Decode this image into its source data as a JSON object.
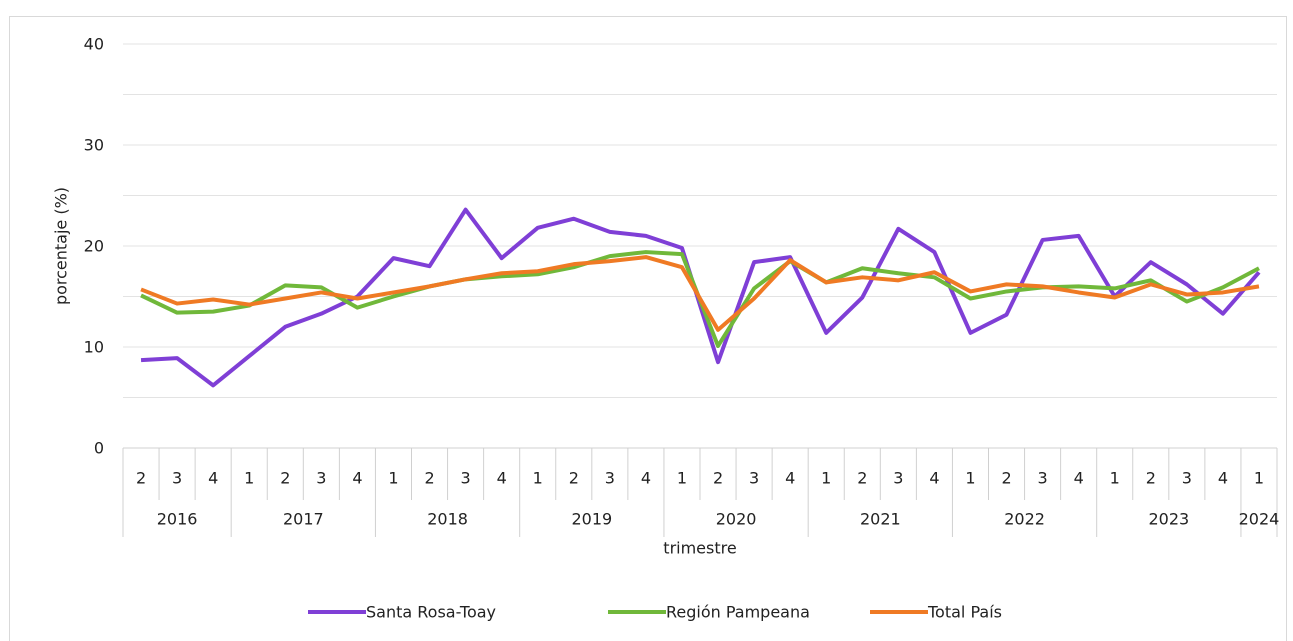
{
  "chart_data": {
    "type": "line",
    "y_label": "porcentaje (%)",
    "x_label": "trimestre",
    "categories": [
      {
        "quarter": "2",
        "year": "2016"
      },
      {
        "quarter": "3",
        "year": "2016"
      },
      {
        "quarter": "4",
        "year": "2016"
      },
      {
        "quarter": "1",
        "year": "2017"
      },
      {
        "quarter": "2",
        "year": "2017"
      },
      {
        "quarter": "3",
        "year": "2017"
      },
      {
        "quarter": "4",
        "year": "2017"
      },
      {
        "quarter": "1",
        "year": "2018"
      },
      {
        "quarter": "2",
        "year": "2018"
      },
      {
        "quarter": "3",
        "year": "2018"
      },
      {
        "quarter": "4",
        "year": "2018"
      },
      {
        "quarter": "1",
        "year": "2019"
      },
      {
        "quarter": "2",
        "year": "2019"
      },
      {
        "quarter": "3",
        "year": "2019"
      },
      {
        "quarter": "4",
        "year": "2019"
      },
      {
        "quarter": "1",
        "year": "2020"
      },
      {
        "quarter": "2",
        "year": "2020"
      },
      {
        "quarter": "3",
        "year": "2020"
      },
      {
        "quarter": "4",
        "year": "2020"
      },
      {
        "quarter": "1",
        "year": "2021"
      },
      {
        "quarter": "2",
        "year": "2021"
      },
      {
        "quarter": "3",
        "year": "2021"
      },
      {
        "quarter": "4",
        "year": "2021"
      },
      {
        "quarter": "1",
        "year": "2022"
      },
      {
        "quarter": "2",
        "year": "2022"
      },
      {
        "quarter": "3",
        "year": "2022"
      },
      {
        "quarter": "4",
        "year": "2022"
      },
      {
        "quarter": "1",
        "year": "2023"
      },
      {
        "quarter": "2",
        "year": "2023"
      },
      {
        "quarter": "3",
        "year": "2023"
      },
      {
        "quarter": "4",
        "year": "2023"
      },
      {
        "quarter": "1",
        "year": "2024"
      }
    ],
    "series": [
      {
        "name": "Santa Rosa-Toay",
        "color": "#7f3fd6",
        "values": [
          8.7,
          8.9,
          6.2,
          9.1,
          12.0,
          13.3,
          15.0,
          18.8,
          18.0,
          23.6,
          18.8,
          21.8,
          22.7,
          21.4,
          21.0,
          19.8,
          8.5,
          18.4,
          18.9,
          11.4,
          14.9,
          21.7,
          19.4,
          11.4,
          13.2,
          20.6,
          21.0,
          15.0,
          18.4,
          16.2,
          13.3,
          17.4
        ]
      },
      {
        "name": "Región Pampeana",
        "color": "#70b83a",
        "values": [
          15.1,
          13.4,
          13.5,
          14.1,
          16.1,
          15.9,
          13.9,
          15.0,
          16.0,
          16.7,
          17.0,
          17.2,
          17.9,
          19.0,
          19.4,
          19.2,
          10.1,
          15.8,
          18.5,
          16.4,
          17.8,
          17.3,
          16.9,
          14.8,
          15.5,
          15.9,
          16.0,
          15.8,
          16.6,
          14.5,
          15.9,
          17.8
        ]
      },
      {
        "name": "Total País",
        "color": "#ef7a24",
        "values": [
          15.7,
          14.3,
          14.7,
          14.2,
          14.8,
          15.4,
          14.8,
          15.4,
          16.0,
          16.7,
          17.3,
          17.5,
          18.2,
          18.5,
          18.9,
          17.9,
          11.7,
          14.8,
          18.6,
          16.4,
          16.9,
          16.6,
          17.4,
          15.5,
          16.2,
          16.0,
          15.4,
          14.9,
          16.2,
          15.2,
          15.4,
          16.0
        ]
      }
    ],
    "ylim": [
      0,
      40
    ],
    "yticks": [
      0,
      10,
      20,
      30,
      40
    ],
    "minor_yticks": [
      5,
      15,
      25,
      35
    ],
    "grid": true,
    "legend": "bottom"
  }
}
